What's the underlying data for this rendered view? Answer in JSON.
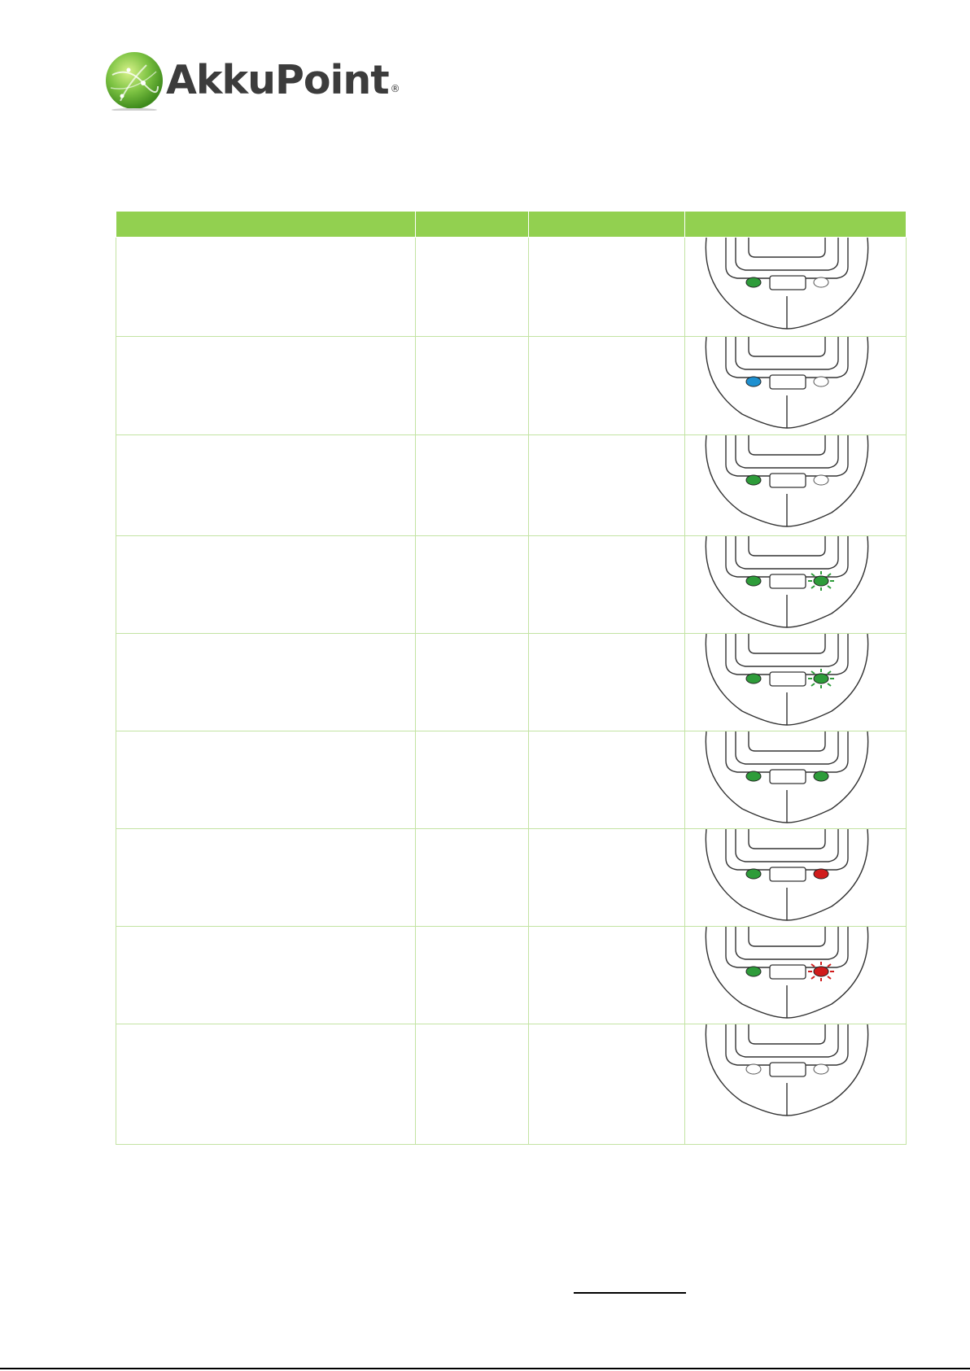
{
  "brand": {
    "name": "AkkuPoint",
    "registered_mark": "®",
    "colors": {
      "green": "#92d050",
      "text": "#3c3c3c"
    }
  },
  "table": {
    "header": [
      "",
      "",
      "",
      ""
    ],
    "rows": [
      {
        "cells": [
          "",
          "",
          ""
        ],
        "left_led": "green",
        "right_led": "off",
        "right_blink": false
      },
      {
        "cells": [
          "",
          "",
          ""
        ],
        "left_led": "blue",
        "right_led": "off",
        "right_blink": false
      },
      {
        "cells": [
          "",
          "",
          ""
        ],
        "left_led": "green",
        "right_led": "off",
        "right_blink": false
      },
      {
        "cells": [
          "",
          "",
          ""
        ],
        "left_led": "green",
        "right_led": "green",
        "right_blink": true
      },
      {
        "cells": [
          "",
          "",
          ""
        ],
        "left_led": "green",
        "right_led": "green",
        "right_blink": true
      },
      {
        "cells": [
          "",
          "",
          ""
        ],
        "left_led": "green",
        "right_led": "green",
        "right_blink": false
      },
      {
        "cells": [
          "",
          "",
          ""
        ],
        "left_led": "green",
        "right_led": "red",
        "right_blink": false
      },
      {
        "cells": [
          "",
          "",
          ""
        ],
        "left_led": "green",
        "right_led": "red",
        "right_blink": true
      },
      {
        "cells": [
          "",
          "",
          ""
        ],
        "left_led": "off",
        "right_led": "off",
        "right_blink": false
      }
    ],
    "led_colors": {
      "green": "#2e9c3a",
      "blue": "#1e90d0",
      "red": "#d01c1c",
      "off": "#ffffff"
    }
  }
}
